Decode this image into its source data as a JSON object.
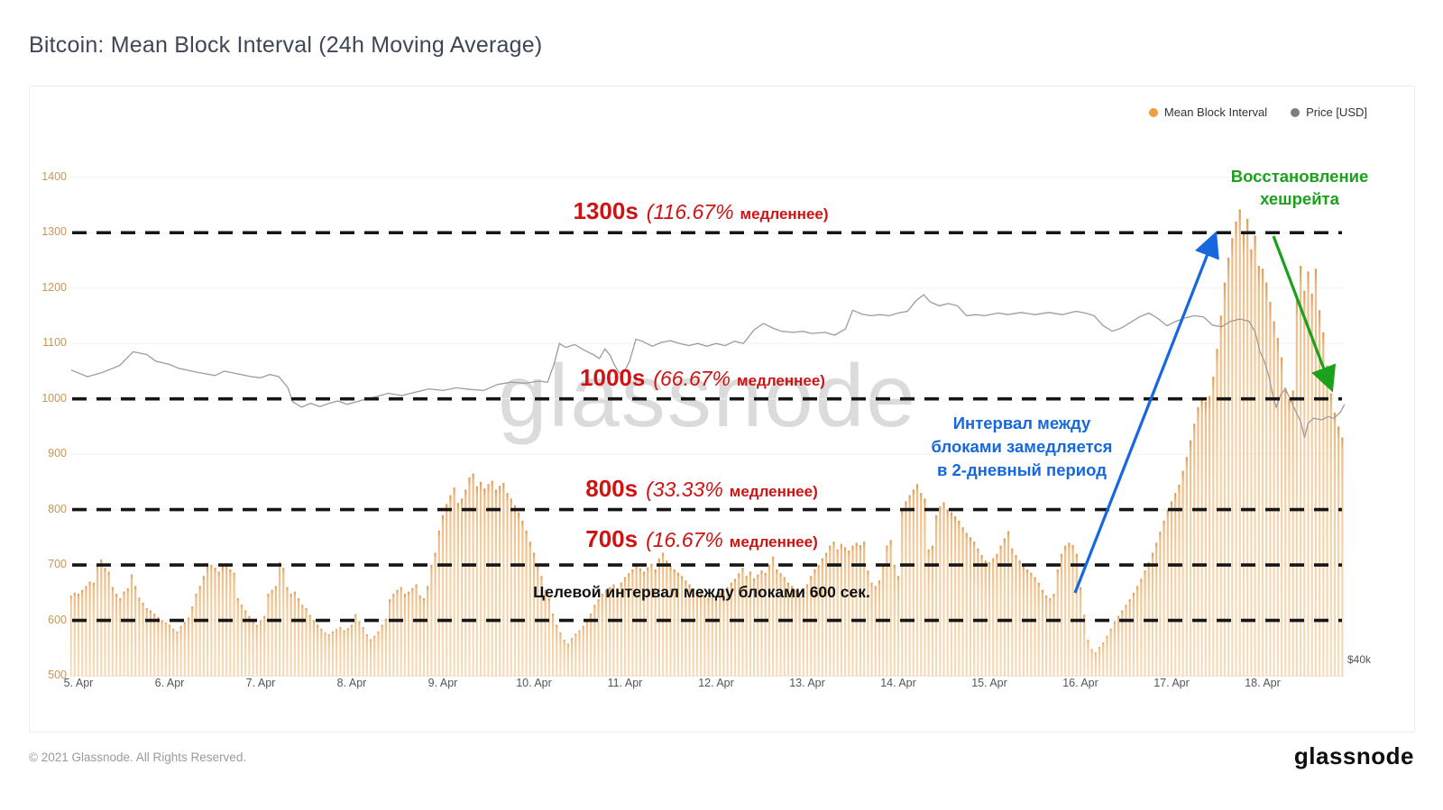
{
  "title": "Bitcoin: Mean Block Interval (24h Moving Average)",
  "watermark": "glassnode",
  "legend": [
    {
      "label": "Mean Block Interval",
      "color": "#ee9f3e"
    },
    {
      "label": "Price [USD]",
      "color": "#7f7f7f"
    }
  ],
  "right_axis_label": "$40k",
  "footer": {
    "copyright": "© 2021 Glassnode. All Rights Reserved.",
    "logo": "glassnode"
  },
  "annotations": {
    "thresholds": [
      {
        "value_label": "1300s",
        "detail": "(116.67%",
        "suffix": "медленнее)",
        "value": 1300
      },
      {
        "value_label": "1000s",
        "detail": "(66.67%",
        "suffix": "медленнее)",
        "value": 1000
      },
      {
        "value_label": "800s",
        "detail": "(33.33%",
        "suffix": "медленнее)",
        "value": 800
      },
      {
        "value_label": "700s",
        "detail": "(16.67%",
        "suffix": "медленнее)",
        "value": 700
      }
    ],
    "target_note": "Целевой интервал между блоками 600 сек.",
    "slowdown_note_lines": [
      "Интервал между",
      "блоками замедляется",
      "в 2-дневный период"
    ],
    "hashrate_note_lines": [
      "Восстановление",
      "хешрейта"
    ],
    "colors": {
      "threshold": "#cf1313",
      "target": "#101010",
      "slowdown": "#1568dd",
      "hashrate": "#1ba11b"
    }
  },
  "chart_data": {
    "type": "bar",
    "title": "Bitcoin: Mean Block Interval (24h Moving Average)",
    "grid": true,
    "legend_position": "top-right",
    "y_axis": {
      "min": 500,
      "max": 1400,
      "tick_step": 100,
      "unit": "seconds"
    },
    "x_axis": {
      "tick_labels": [
        "5. Apr",
        "6. Apr",
        "7. Apr",
        "8. Apr",
        "9. Apr",
        "10. Apr",
        "11. Apr",
        "12. Apr",
        "13. Apr",
        "14. Apr",
        "15. Apr",
        "16. Apr",
        "17. Apr",
        "18. Apr"
      ],
      "tick_days": [
        5,
        6,
        7,
        8,
        9,
        10,
        11,
        12,
        13,
        14,
        15,
        16,
        17,
        18
      ]
    },
    "reference_lines": [
      600,
      700,
      800,
      1000,
      1300
    ],
    "series": [
      {
        "name": "Mean Block Interval",
        "type": "bar",
        "unit": "s",
        "color": "#f2cb9b",
        "start_day": 4.9167,
        "step_hours": 1,
        "values": [
          645,
          650,
          648,
          655,
          662,
          670,
          668,
          700,
          710,
          695,
          688,
          660,
          648,
          640,
          652,
          658,
          683,
          662,
          641,
          632,
          622,
          618,
          612,
          606,
          600,
          596,
          592,
          585,
          580,
          590,
          597,
          605,
          625,
          648,
          662,
          680,
          697,
          700,
          695,
          688,
          697,
          700,
          692,
          686,
          640,
          628,
          618,
          608,
          598,
          592,
          600,
          608,
          648,
          655,
          662,
          705,
          695,
          660,
          648,
          652,
          640,
          628,
          622,
          610,
          600,
          592,
          585,
          578,
          575,
          580,
          584,
          588,
          582,
          586,
          592,
          611,
          598,
          588,
          575,
          566,
          572,
          580,
          592,
          603,
          638,
          648,
          655,
          660,
          648,
          652,
          658,
          665,
          645,
          640,
          662,
          700,
          722,
          762,
          790,
          810,
          826,
          840,
          812,
          820,
          836,
          858,
          865,
          842,
          850,
          838,
          846,
          852,
          836,
          843,
          848,
          830,
          820,
          808,
          795,
          780,
          762,
          742,
          722,
          700,
          680,
          655,
          640,
          612,
          592,
          578,
          565,
          558,
          568,
          576,
          582,
          590,
          600,
          612,
          628,
          638,
          648,
          655,
          660,
          665,
          658,
          668,
          678,
          685,
          692,
          700,
          694,
          688,
          696,
          702,
          692,
          712,
          722,
          708,
          698,
          692,
          686,
          680,
          672,
          665,
          658,
          650,
          655,
          646,
          640,
          644,
          642,
          650,
          655,
          660,
          668,
          675,
          685,
          695,
          680,
          688,
          676,
          683,
          690,
          686,
          700,
          715,
          692,
          685,
          678,
          668,
          662,
          655,
          650,
          658,
          665,
          680,
          692,
          700,
          712,
          722,
          735,
          742,
          728,
          738,
          732,
          726,
          735,
          740,
          736,
          742,
          690,
          668,
          662,
          672,
          700,
          735,
          745,
          700,
          680,
          800,
          815,
          826,
          836,
          846,
          830,
          820,
          728,
          735,
          790,
          806,
          813,
          800,
          795,
          788,
          780,
          768,
          758,
          750,
          742,
          730,
          718,
          708,
          705,
          712,
          720,
          735,
          748,
          761,
          730,
          718,
          708,
          698,
          692,
          686,
          678,
          668,
          655,
          645,
          640,
          648,
          692,
          720,
          735,
          740,
          736,
          720,
          660,
          610,
          565,
          548,
          542,
          552,
          560,
          572,
          585,
          598,
          608,
          618,
          628,
          638,
          650,
          662,
          675,
          690,
          705,
          722,
          740,
          760,
          780,
          800,
          815,
          830,
          845,
          870,
          895,
          925,
          955,
          985,
          1000,
          995,
          1005,
          1040,
          1090,
          1150,
          1210,
          1255,
          1290,
          1320,
          1342,
          1300,
          1325,
          1270,
          1295,
          1240,
          1235,
          1210,
          1175,
          1140,
          1110,
          1075,
          1020,
          1000,
          1015,
          1180,
          1240,
          1195,
          1230,
          1190,
          1235,
          1160,
          1120,
          1060,
          1010,
          975,
          950,
          930
        ]
      },
      {
        "name": "Price [USD]",
        "type": "line",
        "color": "#9c9c9c",
        "note": "plotted against hidden right axis; only $40k shown; values below are left-axis-equivalent positions",
        "points_day_value": [
          [
            4.92,
            1052
          ],
          [
            5.1,
            1040
          ],
          [
            5.25,
            1047
          ],
          [
            5.45,
            1060
          ],
          [
            5.6,
            1085
          ],
          [
            5.75,
            1080
          ],
          [
            5.85,
            1068
          ],
          [
            6.0,
            1062
          ],
          [
            6.1,
            1055
          ],
          [
            6.3,
            1048
          ],
          [
            6.5,
            1042
          ],
          [
            6.6,
            1050
          ],
          [
            6.75,
            1045
          ],
          [
            6.9,
            1040
          ],
          [
            7.0,
            1038
          ],
          [
            7.1,
            1044
          ],
          [
            7.2,
            1040
          ],
          [
            7.3,
            1020
          ],
          [
            7.35,
            995
          ],
          [
            7.45,
            985
          ],
          [
            7.55,
            992
          ],
          [
            7.65,
            986
          ],
          [
            7.75,
            992
          ],
          [
            7.85,
            996
          ],
          [
            7.95,
            990
          ],
          [
            8.1,
            997
          ],
          [
            8.25,
            1003
          ],
          [
            8.4,
            1010
          ],
          [
            8.55,
            1006
          ],
          [
            8.7,
            1012
          ],
          [
            8.85,
            1018
          ],
          [
            9.0,
            1015
          ],
          [
            9.15,
            1020
          ],
          [
            9.3,
            1017
          ],
          [
            9.45,
            1015
          ],
          [
            9.6,
            1026
          ],
          [
            9.75,
            1030
          ],
          [
            9.9,
            1028
          ],
          [
            10.05,
            1032
          ],
          [
            10.15,
            1030
          ],
          [
            10.22,
            1062
          ],
          [
            10.28,
            1100
          ],
          [
            10.35,
            1093
          ],
          [
            10.45,
            1098
          ],
          [
            10.55,
            1088
          ],
          [
            10.65,
            1080
          ],
          [
            10.72,
            1073
          ],
          [
            10.78,
            1090
          ],
          [
            10.84,
            1078
          ],
          [
            10.88,
            1062
          ],
          [
            10.94,
            1046
          ],
          [
            11.0,
            1052
          ],
          [
            11.05,
            1068
          ],
          [
            11.12,
            1108
          ],
          [
            11.2,
            1103
          ],
          [
            11.3,
            1095
          ],
          [
            11.4,
            1102
          ],
          [
            11.5,
            1105
          ],
          [
            11.6,
            1100
          ],
          [
            11.7,
            1096
          ],
          [
            11.8,
            1100
          ],
          [
            11.9,
            1095
          ],
          [
            12.0,
            1100
          ],
          [
            12.1,
            1096
          ],
          [
            12.2,
            1104
          ],
          [
            12.3,
            1100
          ],
          [
            12.42,
            1125
          ],
          [
            12.52,
            1136
          ],
          [
            12.62,
            1128
          ],
          [
            12.72,
            1122
          ],
          [
            12.85,
            1120
          ],
          [
            12.95,
            1122
          ],
          [
            13.05,
            1118
          ],
          [
            13.2,
            1120
          ],
          [
            13.3,
            1115
          ],
          [
            13.42,
            1126
          ],
          [
            13.5,
            1160
          ],
          [
            13.6,
            1153
          ],
          [
            13.7,
            1150
          ],
          [
            13.8,
            1152
          ],
          [
            13.9,
            1150
          ],
          [
            14.0,
            1155
          ],
          [
            14.1,
            1158
          ],
          [
            14.2,
            1178
          ],
          [
            14.28,
            1188
          ],
          [
            14.35,
            1175
          ],
          [
            14.45,
            1168
          ],
          [
            14.55,
            1172
          ],
          [
            14.65,
            1168
          ],
          [
            14.75,
            1150
          ],
          [
            14.85,
            1152
          ],
          [
            14.95,
            1150
          ],
          [
            15.1,
            1155
          ],
          [
            15.2,
            1152
          ],
          [
            15.35,
            1156
          ],
          [
            15.5,
            1152
          ],
          [
            15.65,
            1156
          ],
          [
            15.8,
            1152
          ],
          [
            15.95,
            1158
          ],
          [
            16.05,
            1155
          ],
          [
            16.15,
            1150
          ],
          [
            16.25,
            1132
          ],
          [
            16.35,
            1122
          ],
          [
            16.45,
            1128
          ],
          [
            16.55,
            1138
          ],
          [
            16.65,
            1148
          ],
          [
            16.75,
            1155
          ],
          [
            16.85,
            1145
          ],
          [
            16.95,
            1132
          ],
          [
            17.05,
            1140
          ],
          [
            17.15,
            1146
          ],
          [
            17.25,
            1150
          ],
          [
            17.35,
            1148
          ],
          [
            17.45,
            1133
          ],
          [
            17.55,
            1130
          ],
          [
            17.65,
            1140
          ],
          [
            17.75,
            1144
          ],
          [
            17.85,
            1140
          ],
          [
            17.92,
            1120
          ],
          [
            17.97,
            1085
          ],
          [
            18.02,
            1068
          ],
          [
            18.07,
            1040
          ],
          [
            18.12,
            1000
          ],
          [
            18.15,
            985
          ],
          [
            18.2,
            1008
          ],
          [
            18.25,
            1018
          ],
          [
            18.3,
            1000
          ],
          [
            18.35,
            982
          ],
          [
            18.42,
            958
          ],
          [
            18.46,
            930
          ],
          [
            18.5,
            956
          ],
          [
            18.56,
            965
          ],
          [
            18.65,
            962
          ],
          [
            18.72,
            968
          ],
          [
            18.78,
            965
          ],
          [
            18.85,
            975
          ],
          [
            18.9,
            990
          ]
        ]
      }
    ]
  }
}
